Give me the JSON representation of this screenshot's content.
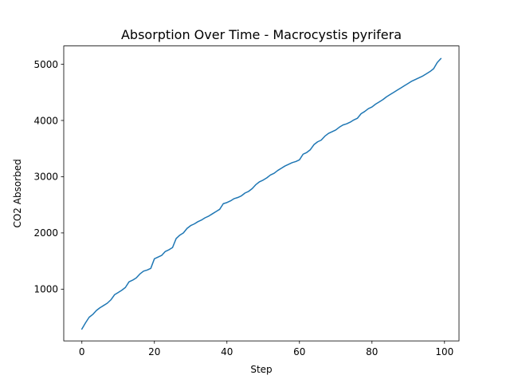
{
  "chart_data": {
    "type": "line",
    "title": "Absorption Over Time - Macrocystis pyrifera",
    "xlabel": "Step",
    "ylabel": "CO2 Absorbed",
    "xlim": [
      -5,
      104
    ],
    "ylim": [
      80,
      5325
    ],
    "xticks": [
      0,
      20,
      40,
      60,
      80,
      100
    ],
    "yticks": [
      1000,
      2000,
      3000,
      4000,
      5000
    ],
    "grid": false,
    "legend": "none",
    "series": [
      {
        "color": "#1f77b4",
        "x": [
          0,
          1,
          2,
          3,
          4,
          5,
          6,
          7,
          8,
          9,
          10,
          11,
          12,
          13,
          14,
          15,
          16,
          17,
          18,
          19,
          20,
          21,
          22,
          23,
          24,
          25,
          26,
          27,
          28,
          29,
          30,
          31,
          32,
          33,
          34,
          35,
          36,
          37,
          38,
          39,
          40,
          41,
          42,
          43,
          44,
          45,
          46,
          47,
          48,
          49,
          50,
          51,
          52,
          53,
          54,
          55,
          56,
          57,
          58,
          59,
          60,
          61,
          62,
          63,
          64,
          65,
          66,
          67,
          68,
          69,
          70,
          71,
          72,
          73,
          74,
          75,
          76,
          77,
          78,
          79,
          80,
          81,
          82,
          83,
          84,
          85,
          86,
          87,
          88,
          89,
          90,
          91,
          92,
          93,
          94,
          95,
          96,
          97,
          98,
          99
        ],
        "values": [
          290,
          400,
          500,
          550,
          620,
          670,
          710,
          750,
          810,
          900,
          940,
          980,
          1030,
          1130,
          1160,
          1200,
          1270,
          1320,
          1340,
          1370,
          1540,
          1570,
          1600,
          1670,
          1700,
          1740,
          1900,
          1960,
          2000,
          2080,
          2130,
          2160,
          2200,
          2230,
          2270,
          2300,
          2340,
          2380,
          2420,
          2520,
          2540,
          2570,
          2610,
          2630,
          2660,
          2710,
          2740,
          2790,
          2860,
          2910,
          2940,
          2980,
          3030,
          3060,
          3110,
          3150,
          3190,
          3220,
          3250,
          3270,
          3300,
          3400,
          3430,
          3480,
          3570,
          3620,
          3650,
          3720,
          3770,
          3800,
          3830,
          3880,
          3920,
          3940,
          3970,
          4010,
          4040,
          4120,
          4160,
          4210,
          4240,
          4290,
          4330,
          4370,
          4420,
          4460,
          4500,
          4540,
          4580,
          4620,
          4660,
          4700,
          4730,
          4760,
          4790,
          4830,
          4870,
          4920,
          5030,
          5100
        ]
      }
    ]
  }
}
